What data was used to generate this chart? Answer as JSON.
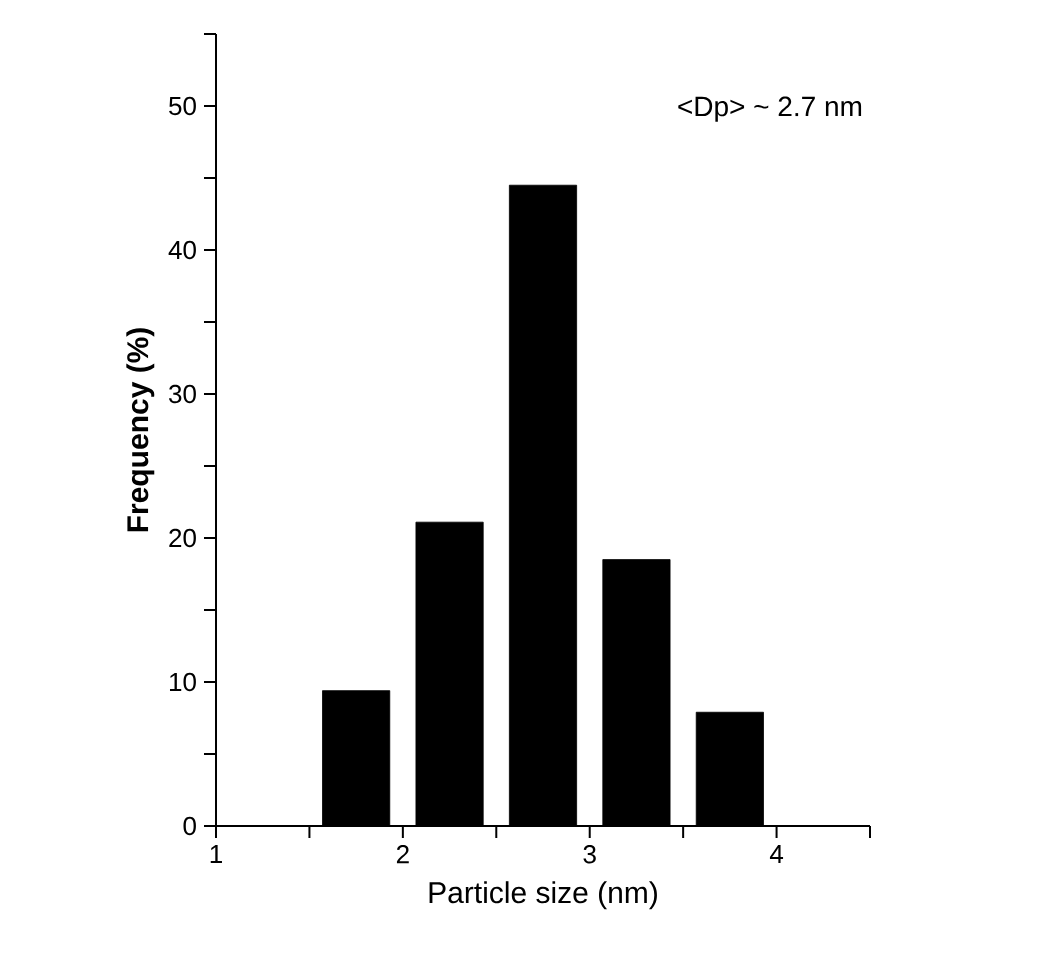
{
  "chart_data": {
    "type": "bar",
    "xlabel": "Particle size (nm)",
    "ylabel": "Frequency (%)",
    "x": [
      1.75,
      2.25,
      2.75,
      3.25,
      3.75
    ],
    "values": [
      9.4,
      21.1,
      44.5,
      18.5,
      7.9
    ],
    "color": "#000000",
    "xlim": [
      1,
      4.5
    ],
    "ylim": [
      0,
      55
    ],
    "xticks": [
      1,
      {
        "value": 1.5,
        "label": null
      },
      2,
      {
        "value": 2.5,
        "label": null
      },
      3,
      {
        "value": 3.5,
        "label": null
      },
      4,
      {
        "value": 4.5,
        "label": null
      }
    ],
    "yticks": [
      0,
      {
        "value": 5,
        "label": null
      },
      10,
      {
        "value": 15,
        "label": null
      },
      20,
      {
        "value": 25,
        "label": null
      },
      30,
      {
        "value": 35,
        "label": null
      },
      40,
      {
        "value": 45,
        "label": null
      },
      50,
      {
        "value": 55,
        "label": null
      }
    ],
    "annotations": [
      "<Dp> ~ 2.7 nm"
    ],
    "grid": false
  }
}
